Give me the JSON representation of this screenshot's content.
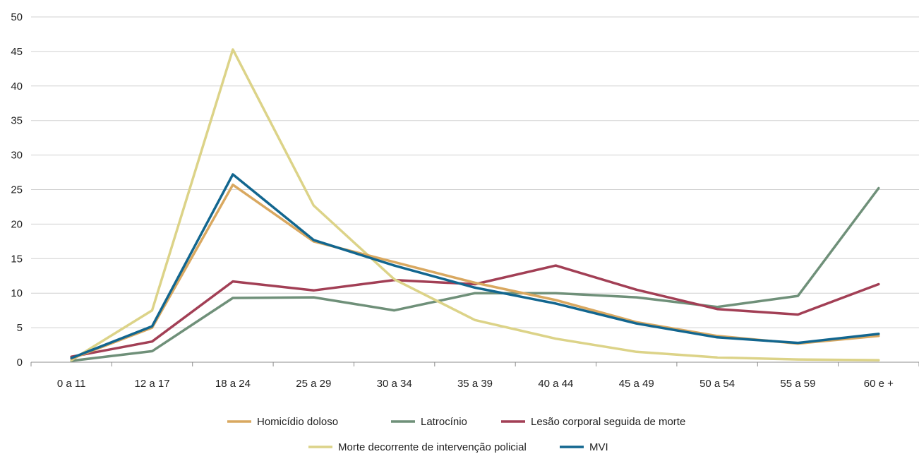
{
  "chart_data": {
    "type": "line",
    "title": "",
    "xlabel": "",
    "ylabel": "",
    "categories": [
      "0 a 11",
      "12 a 17",
      "18 a 24",
      "25 a 29",
      "30 a 34",
      "35 a 39",
      "40 a 44",
      "45 a 49",
      "50 a 54",
      "55 a 59",
      "60 e +"
    ],
    "ylim": [
      0,
      50
    ],
    "yticks": [
      0,
      5,
      10,
      15,
      20,
      25,
      30,
      35,
      40,
      45,
      50
    ],
    "grid": true,
    "legend_position": "bottom",
    "series": [
      {
        "name": "Homicídio doloso",
        "color": "#D9A860",
        "values": [
          0.5,
          5.0,
          25.7,
          17.5,
          14.5,
          11.5,
          9.0,
          5.8,
          3.8,
          2.7,
          3.8
        ]
      },
      {
        "name": "Latrocínio",
        "color": "#6F9079",
        "values": [
          0.2,
          1.6,
          9.3,
          9.4,
          7.5,
          10.0,
          10.0,
          9.4,
          8.0,
          9.6,
          25.2
        ]
      },
      {
        "name": "Lesão corporal seguida de morte",
        "color": "#A23F55",
        "values": [
          0.8,
          3.0,
          11.7,
          10.4,
          11.9,
          11.3,
          14.0,
          10.5,
          7.7,
          6.9,
          11.3
        ]
      },
      {
        "name": "Morte decorrente de intervenção policial",
        "color": "#DCD388",
        "values": [
          0.3,
          7.5,
          45.3,
          22.7,
          12.0,
          6.1,
          3.4,
          1.5,
          0.7,
          0.4,
          0.3
        ]
      },
      {
        "name": "MVI",
        "color": "#12668F",
        "values": [
          0.6,
          5.2,
          27.2,
          17.7,
          14.0,
          10.8,
          8.5,
          5.6,
          3.6,
          2.8,
          4.1
        ]
      }
    ]
  }
}
